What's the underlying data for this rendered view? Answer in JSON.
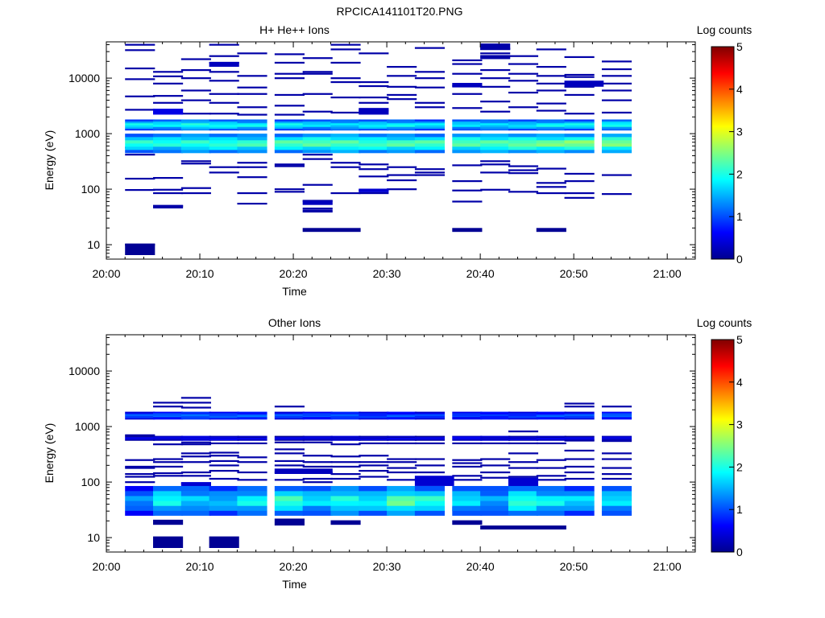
{
  "figure_title": "RPCICA141101T20.PNG",
  "chart_data": [
    {
      "type": "heatmap",
      "title": "H+ He++ Ions",
      "xlabel": "Time",
      "ylabel": "Energy (eV)",
      "x_ticks": [
        "20:00",
        "20:10",
        "20:20",
        "20:30",
        "20:40",
        "20:50",
        "21:00"
      ],
      "xlim": [
        "20:00",
        "21:03"
      ],
      "y_scale": "log",
      "y_ticks": [
        10,
        100,
        1000,
        10000
      ],
      "ylim": [
        5.5,
        45000
      ],
      "colorbar": {
        "label": "Log counts",
        "ticks": [
          0,
          1,
          2,
          3,
          4,
          5
        ],
        "range": [
          0,
          5
        ]
      },
      "time_bins": [
        "20:02",
        "20:05",
        "20:08",
        "20:11",
        "20:14",
        "20:18",
        "20:21",
        "20:24",
        "20:27",
        "20:30",
        "20:33",
        "20:37",
        "20:40",
        "20:43",
        "20:46",
        "20:49",
        "20:53"
      ],
      "bands": [
        {
          "e_low": 1150,
          "e_high": 1800,
          "levels": [
            2.0,
            2.0,
            2.2,
            2.1,
            2.0,
            2.0,
            1.9,
            1.9,
            2.0,
            2.0,
            1.9,
            1.9,
            1.9,
            1.9,
            2.0,
            2.0,
            2.1
          ]
        },
        {
          "e_low": 450,
          "e_high": 1000,
          "levels": [
            2.2,
            2.2,
            2.3,
            2.3,
            2.3,
            2.4,
            2.5,
            2.5,
            2.4,
            2.4,
            2.4,
            2.5,
            2.5,
            2.6,
            2.6,
            2.7,
            2.7
          ]
        }
      ],
      "cells": [
        {
          "t0": "20:02",
          "t1": "20:05",
          "e_low": 6.5,
          "e_high": 10.5,
          "level": 0.1
        },
        {
          "t0": "20:21",
          "t1": "20:27",
          "e_low": 17,
          "e_high": 20,
          "level": 0.1
        },
        {
          "t0": "20:37",
          "t1": "20:40",
          "e_low": 17,
          "e_high": 20,
          "level": 0.1
        },
        {
          "t0": "20:46",
          "t1": "20:49",
          "e_low": 17,
          "e_high": 20,
          "level": 0.1
        },
        {
          "t0": "20:05",
          "t1": "20:08",
          "e_low": 45,
          "e_high": 52,
          "level": 0.2
        },
        {
          "t0": "20:21",
          "t1": "20:24",
          "e_low": 52,
          "e_high": 62,
          "level": 0.3
        },
        {
          "t0": "20:21",
          "t1": "20:24",
          "e_low": 38,
          "e_high": 43,
          "level": 0.2
        },
        {
          "t0": "20:27",
          "t1": "20:30",
          "e_low": 88,
          "e_high": 102,
          "level": 0.4
        },
        {
          "t0": "20:27",
          "t1": "20:30",
          "e_low": 2200,
          "e_high": 2900,
          "level": 0.3
        },
        {
          "t0": "20:05",
          "t1": "20:08",
          "e_low": 2200,
          "e_high": 2800,
          "level": 0.5
        },
        {
          "t0": "20:11",
          "t1": "20:14",
          "e_low": 16000,
          "e_high": 19500,
          "level": 0.3
        },
        {
          "t0": "20:40",
          "t1": "20:43",
          "e_low": 22000,
          "e_high": 26000,
          "level": 0.2
        },
        {
          "t0": "20:40",
          "t1": "20:43",
          "e_low": 32000,
          "e_high": 42000,
          "level": 0.2
        },
        {
          "t0": "20:37",
          "t1": "20:40",
          "e_low": 6800,
          "e_high": 8200,
          "level": 0.3
        },
        {
          "t0": "20:49",
          "t1": "20:53",
          "e_low": 7000,
          "e_high": 9000,
          "level": 0.3
        },
        {
          "t0": "20:43",
          "t1": "20:46",
          "e_low": 760,
          "e_high": 1000,
          "level": 1.3
        },
        {
          "t0": "20:11",
          "t1": "20:14",
          "e_low": 640,
          "e_high": 780,
          "level": 1.8
        }
      ],
      "sparse_lines": [
        [
          10.0,
          97,
          155,
          420,
          560,
          2700,
          4700,
          9600,
          15000,
          32000,
          40000
        ],
        [
          50,
          85,
          98,
          160,
          2400,
          2700,
          3600,
          4800,
          8000,
          10800,
          13000
        ],
        [
          85,
          105,
          290,
          320,
          2300,
          4000,
          6000,
          10000,
          14000,
          22000
        ],
        [
          200,
          250,
          2300,
          3600,
          5200,
          9000,
          13000,
          19000,
          25000,
          40000
        ],
        [
          55,
          85,
          165,
          250,
          300,
          2200,
          3000,
          5200,
          6800,
          11000,
          28000
        ],
        [
          90,
          100,
          260,
          280,
          2200,
          3200,
          5000,
          10000,
          12000,
          19000,
          27000
        ],
        [
          45,
          62,
          120,
          350,
          420,
          2500,
          5200,
          12000,
          13000,
          23000
        ],
        [
          85,
          250,
          300,
          2400,
          4500,
          8500,
          10000,
          19000,
          33000,
          40000
        ],
        [
          85,
          95,
          170,
          230,
          280,
          2600,
          3600,
          4500,
          7200,
          8500,
          28000
        ],
        [
          100,
          145,
          180,
          250,
          4200,
          5000,
          7000,
          11000,
          16000
        ],
        [
          180,
          200,
          230,
          3000,
          3600,
          6800,
          10000,
          13000,
          35000
        ],
        [
          60,
          95,
          140,
          270,
          2900,
          5200,
          7300,
          12000,
          18000,
          21000
        ],
        [
          98,
          200,
          280,
          320,
          2500,
          3800,
          7000,
          10000,
          14000,
          28000,
          34000
        ],
        [
          90,
          195,
          220,
          260,
          3000,
          5500,
          9000,
          12000,
          18000,
          25000
        ],
        [
          85,
          110,
          130,
          235,
          2600,
          3500,
          6000,
          8000,
          11000,
          16000,
          33000
        ],
        [
          70,
          85,
          140,
          190,
          2300,
          5000,
          7000,
          10500,
          11500,
          24000
        ],
        [
          82,
          180,
          2400,
          4000,
          6000,
          8000,
          11000,
          14500,
          20000
        ]
      ]
    },
    {
      "type": "heatmap",
      "title": "Other Ions",
      "xlabel": "Time",
      "ylabel": "Energy (eV)",
      "x_ticks": [
        "20:00",
        "20:10",
        "20:20",
        "20:30",
        "20:40",
        "20:50",
        "21:00"
      ],
      "xlim": [
        "20:00",
        "21:03"
      ],
      "y_scale": "log",
      "y_ticks": [
        10,
        100,
        1000,
        10000
      ],
      "ylim": [
        5.5,
        45000
      ],
      "colorbar": {
        "label": "Log counts",
        "ticks": [
          0,
          1,
          2,
          3,
          4,
          5
        ],
        "range": [
          0,
          5
        ]
      },
      "time_bins": [
        "20:02",
        "20:05",
        "20:08",
        "20:11",
        "20:14",
        "20:18",
        "20:21",
        "20:24",
        "20:27",
        "20:30",
        "20:33",
        "20:37",
        "20:40",
        "20:43",
        "20:46",
        "20:49",
        "20:53"
      ],
      "bands": [
        {
          "e_low": 1350,
          "e_high": 1850,
          "levels": [
            1.1,
            1.2,
            1.3,
            1.2,
            1.2,
            1.1,
            1.1,
            1.2,
            1.0,
            1.1,
            1.0,
            1.0,
            1.0,
            1.0,
            1.1,
            1.1,
            1.2
          ]
        },
        {
          "e_low": 560,
          "e_high": 680,
          "levels": [
            0.5,
            0.5,
            0.6,
            0.6,
            0.5,
            0.5,
            0.5,
            0.5,
            0.5,
            0.5,
            0.5,
            0.6,
            0.5,
            0.5,
            0.5,
            0.5,
            0.5
          ]
        },
        {
          "e_low": 25,
          "e_high": 85,
          "levels": [
            1.4,
            2.1,
            1.8,
            1.7,
            2.0,
            2.3,
            1.9,
            2.2,
            2.0,
            2.5,
            2.2,
            1.9,
            1.6,
            2.3,
            2.0,
            1.8,
            1.9
          ]
        }
      ],
      "cells": [
        {
          "t0": "20:05",
          "t1": "20:08",
          "e_low": 6.5,
          "e_high": 10.5,
          "level": 0.1
        },
        {
          "t0": "20:11",
          "t1": "20:14",
          "e_low": 6.5,
          "e_high": 10.5,
          "level": 0.1
        },
        {
          "t0": "20:40",
          "t1": "20:49",
          "e_low": 14,
          "e_high": 16.5,
          "level": 0.1
        },
        {
          "t0": "20:05",
          "t1": "20:08",
          "e_low": 17,
          "e_high": 21,
          "level": 0.1
        },
        {
          "t0": "20:18",
          "t1": "20:21",
          "e_low": 16.5,
          "e_high": 22,
          "level": 0.1
        },
        {
          "t0": "20:24",
          "t1": "20:27",
          "e_low": 17,
          "e_high": 20.5,
          "level": 0.1
        },
        {
          "t0": "20:37",
          "t1": "20:40",
          "e_low": 17,
          "e_high": 20.5,
          "level": 0.1
        },
        {
          "t0": "20:37",
          "t1": "20:40",
          "e_low": 30,
          "e_high": 36,
          "level": 0.8
        },
        {
          "t0": "20:33",
          "t1": "20:37",
          "e_low": 85,
          "e_high": 130,
          "level": 0.4
        },
        {
          "t0": "20:43",
          "t1": "20:46",
          "e_low": 75,
          "e_high": 120,
          "level": 0.4
        },
        {
          "t0": "20:18",
          "t1": "20:24",
          "e_low": 140,
          "e_high": 175,
          "level": 0.3
        },
        {
          "t0": "20:08",
          "t1": "20:11",
          "e_low": 82,
          "e_high": 100,
          "level": 0.4
        }
      ],
      "sparse_lines": [
        [
          100,
          125,
          140,
          180,
          190,
          250,
          700
        ],
        [
          130,
          145,
          190,
          230,
          260,
          480,
          2300,
          2700
        ],
        [
          95,
          130,
          150,
          230,
          290,
          330,
          480,
          520,
          2200,
          2700,
          3300
        ],
        [
          115,
          160,
          200,
          240,
          300,
          340,
          500
        ],
        [
          110,
          150,
          230,
          280,
          500
        ],
        [
          110,
          150,
          200,
          240,
          330,
          390,
          520,
          2300
        ],
        [
          100,
          115,
          150,
          190,
          230,
          300,
          520
        ],
        [
          115,
          140,
          190,
          230,
          290,
          480
        ],
        [
          125,
          160,
          200,
          230,
          300,
          500
        ],
        [
          110,
          150,
          180,
          230,
          260,
          500
        ],
        [
          115,
          150,
          200,
          260,
          500
        ],
        [
          110,
          130,
          190,
          220,
          250,
          500
        ],
        [
          120,
          150,
          200,
          260,
          500
        ],
        [
          125,
          180,
          230,
          330,
          500,
          820
        ],
        [
          110,
          130,
          180,
          250,
          500,
          650
        ],
        [
          115,
          150,
          190,
          260,
          370,
          560,
          2300,
          2600
        ],
        [
          115,
          140,
          180,
          260,
          330,
          550,
          2300
        ]
      ]
    }
  ]
}
